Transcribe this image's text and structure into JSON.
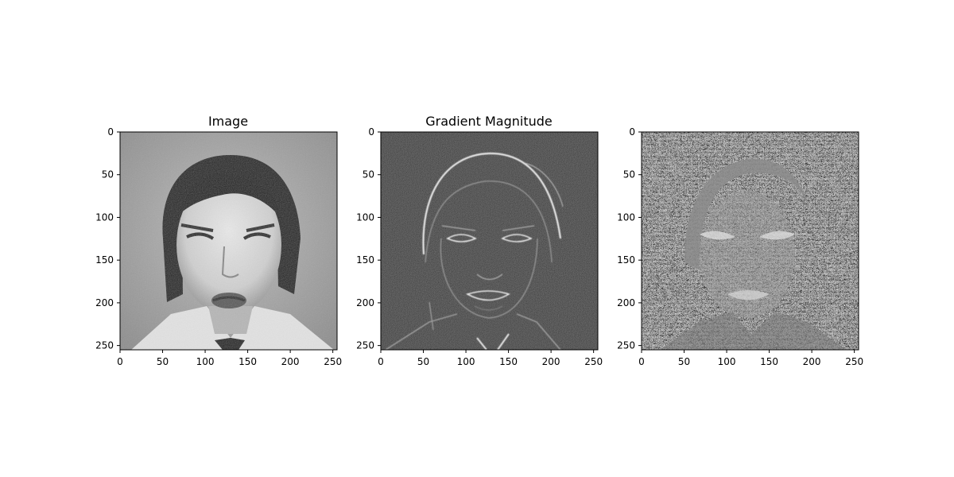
{
  "figure": {
    "background": "#ffffff"
  },
  "chart_data": [
    {
      "type": "heatmap",
      "panel": "image",
      "title": "Image",
      "description": "grayscale photograph of a face",
      "xlim": [
        0,
        255
      ],
      "ylim": [
        255,
        0
      ],
      "xticks": [
        0,
        50,
        100,
        150,
        200,
        250
      ],
      "yticks": [
        0,
        50,
        100,
        150,
        200,
        250
      ],
      "colormap": "gray"
    },
    {
      "type": "heatmap",
      "panel": "gradient-magnitude",
      "title": "Gradient Magnitude",
      "description": "edge magnitude map, bright edges on black",
      "xlim": [
        0,
        255
      ],
      "ylim": [
        255,
        0
      ],
      "xticks": [
        0,
        50,
        100,
        150,
        200,
        250
      ],
      "yticks": [
        0,
        50,
        100,
        150,
        200,
        250
      ],
      "colormap": "gray"
    },
    {
      "type": "heatmap",
      "panel": "gradient-direction",
      "title": "",
      "description": "gradient direction map, noisy gray texture",
      "xlim": [
        0,
        255
      ],
      "ylim": [
        255,
        0
      ],
      "xticks": [
        0,
        50,
        100,
        150,
        200,
        250
      ],
      "yticks": [
        0,
        50,
        100,
        150,
        200,
        250
      ],
      "colormap": "gray"
    }
  ]
}
